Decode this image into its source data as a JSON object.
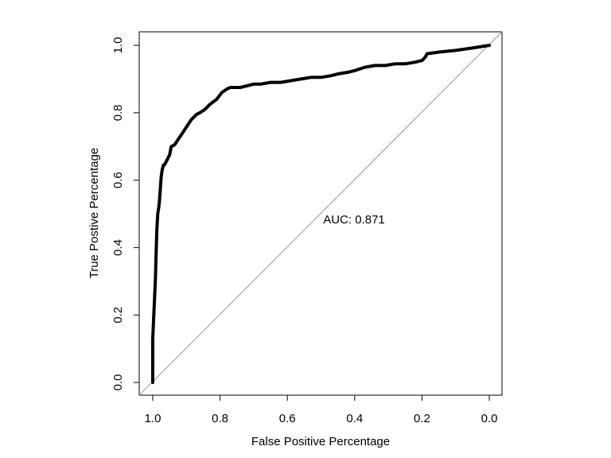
{
  "chart_data": {
    "type": "line",
    "title": "",
    "xlabel": "False Positive Percentage",
    "ylabel": "True Postive Percentage",
    "xlim": [
      1.0,
      0.0
    ],
    "ylim": [
      0.0,
      1.0
    ],
    "x_ticks": [
      "1.0",
      "0.8",
      "0.6",
      "0.4",
      "0.2",
      "0.0"
    ],
    "y_ticks": [
      "0.0",
      "0.2",
      "0.4",
      "0.6",
      "0.8",
      "1.0"
    ],
    "grid": false,
    "legend": "none",
    "annotation": "AUC: 0.871",
    "reference_line": {
      "x": [
        1.0,
        0.0
      ],
      "y": [
        0.0,
        1.0
      ],
      "color": "#999999"
    },
    "series": [
      {
        "color": "#000000",
        "x": [
          1.0,
          1.0,
          0.997,
          0.995,
          0.992,
          0.99,
          0.988,
          0.985,
          0.982,
          0.98,
          0.977,
          0.975,
          0.972,
          0.968,
          0.965,
          0.96,
          0.955,
          0.95,
          0.945,
          0.935,
          0.925,
          0.915,
          0.905,
          0.895,
          0.885,
          0.87,
          0.86,
          0.845,
          0.83,
          0.81,
          0.795,
          0.78,
          0.77,
          0.76,
          0.74,
          0.72,
          0.7,
          0.68,
          0.65,
          0.62,
          0.59,
          0.56,
          0.53,
          0.5,
          0.47,
          0.45,
          0.42,
          0.4,
          0.37,
          0.34,
          0.31,
          0.28,
          0.25,
          0.22,
          0.2,
          0.19,
          0.185,
          0.15,
          0.1,
          0.05,
          0.0
        ],
        "y": [
          0.0,
          0.13,
          0.2,
          0.24,
          0.31,
          0.38,
          0.45,
          0.5,
          0.52,
          0.54,
          0.58,
          0.61,
          0.63,
          0.645,
          0.645,
          0.655,
          0.665,
          0.675,
          0.7,
          0.705,
          0.72,
          0.735,
          0.75,
          0.765,
          0.78,
          0.795,
          0.8,
          0.81,
          0.825,
          0.84,
          0.86,
          0.87,
          0.875,
          0.875,
          0.875,
          0.88,
          0.885,
          0.885,
          0.89,
          0.89,
          0.895,
          0.9,
          0.905,
          0.905,
          0.91,
          0.915,
          0.92,
          0.925,
          0.935,
          0.94,
          0.94,
          0.945,
          0.945,
          0.95,
          0.955,
          0.965,
          0.975,
          0.98,
          0.985,
          0.992,
          1.0
        ]
      }
    ]
  }
}
